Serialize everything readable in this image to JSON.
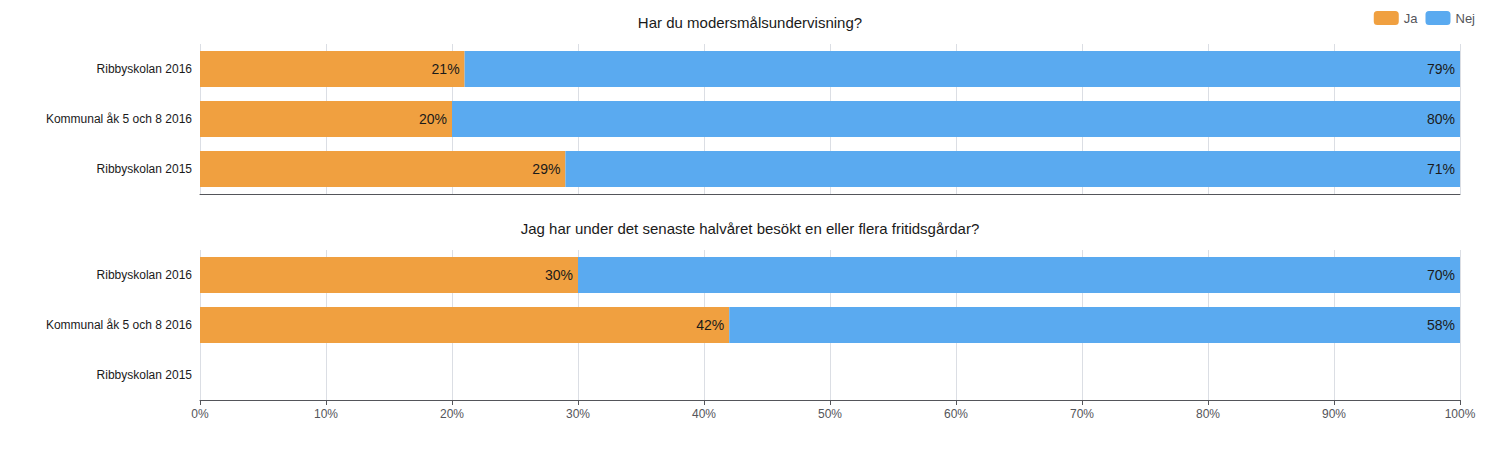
{
  "chart_data": [
    {
      "type": "bar",
      "title": "Har du modersmålsundervisning?",
      "orientation": "horizontal",
      "stacked": true,
      "data_labels": true,
      "grid": true,
      "legend": "upper right",
      "tick_labels": "y",
      "categories": [
        "Ribbyskolan 2016",
        "Kommunal åk 5 och 8 2016",
        "Ribbyskolan 2015"
      ],
      "series": [
        {
          "name": "Ja",
          "color": "#F0A040",
          "values": [
            21,
            20,
            29
          ],
          "value_labels": [
            "21%",
            "20%",
            "29%"
          ]
        },
        {
          "name": "Nej",
          "color": "#5AAAF0",
          "values": [
            79,
            80,
            71
          ],
          "value_labels": [
            "79%",
            "80%",
            "71%"
          ]
        }
      ],
      "xlim": [
        0,
        100
      ],
      "xticks": [
        0,
        10,
        20,
        30,
        40,
        50,
        60,
        70,
        80,
        90,
        100
      ]
    },
    {
      "type": "bar",
      "title": "Jag har under det senaste halvåret besökt en eller flera fritidsgårdar?",
      "orientation": "horizontal",
      "stacked": true,
      "data_labels": true,
      "grid": true,
      "categories": [
        "Ribbyskolan 2016",
        "Kommunal åk 5 och 8 2016",
        "Ribbyskolan 2015"
      ],
      "series": [
        {
          "name": "Ja",
          "color": "#F0A040",
          "values": [
            30,
            42,
            null
          ],
          "value_labels": [
            "30%",
            "42%",
            null
          ]
        },
        {
          "name": "Nej",
          "color": "#5AAAF0",
          "values": [
            70,
            58,
            null
          ],
          "value_labels": [
            "70%",
            "58%",
            null
          ]
        }
      ],
      "xlim": [
        0,
        100
      ],
      "xticks": [
        {
          "value": 0,
          "label": "0%"
        },
        {
          "value": 10,
          "label": "10%"
        },
        {
          "value": 20,
          "label": "20%"
        },
        {
          "value": 30,
          "label": "30%"
        },
        {
          "value": 40,
          "label": "40%"
        },
        {
          "value": 50,
          "label": "50%"
        },
        {
          "value": 60,
          "label": "60%"
        },
        {
          "value": 70,
          "label": "70%"
        },
        {
          "value": 80,
          "label": "80%"
        },
        {
          "value": 90,
          "label": "90%"
        },
        {
          "value": 100,
          "label": "100%"
        }
      ]
    }
  ]
}
